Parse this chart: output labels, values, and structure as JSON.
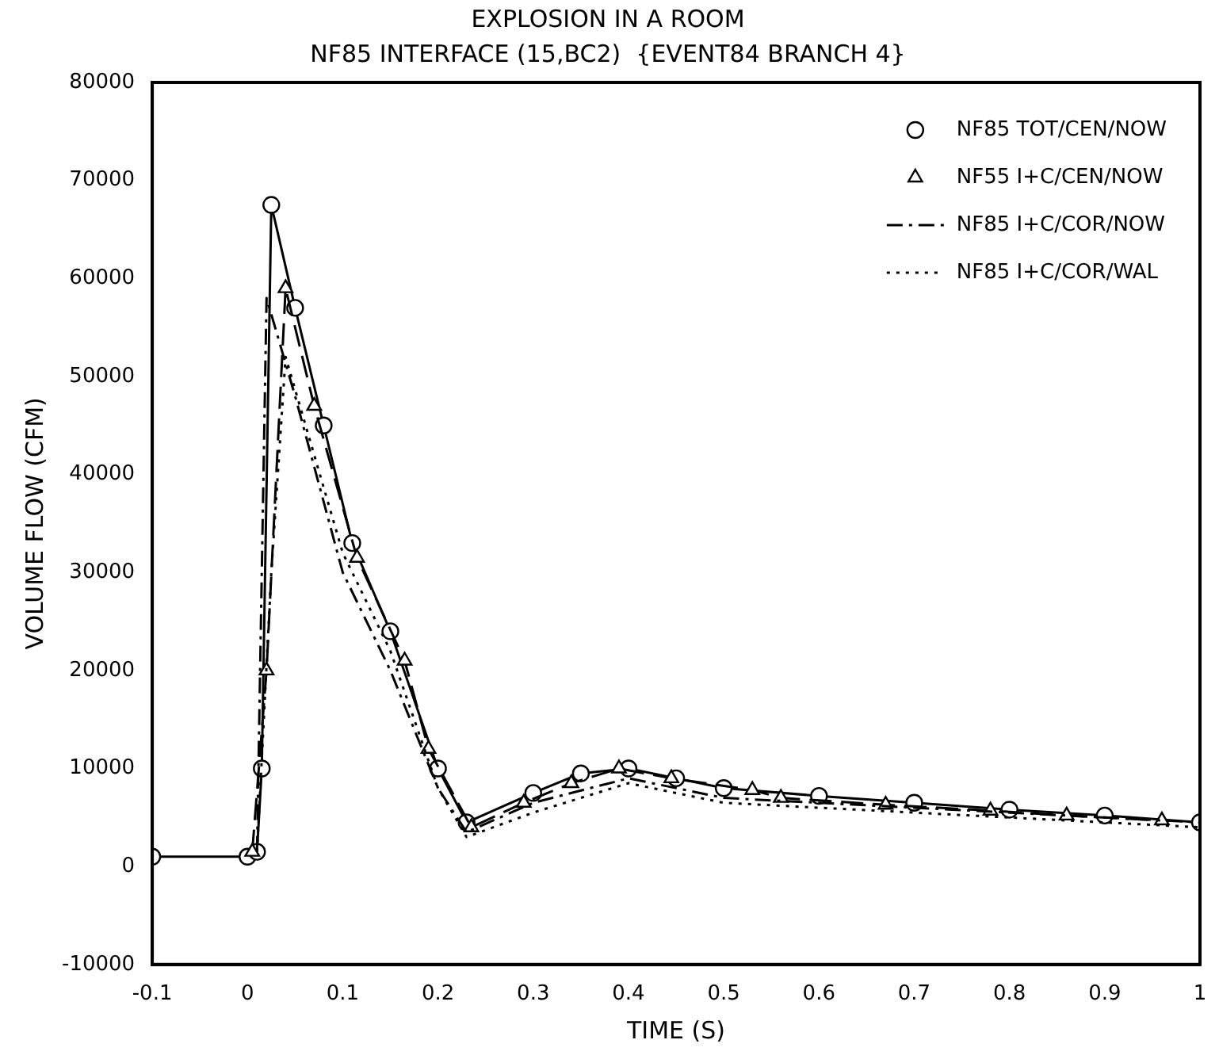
{
  "chart_data": {
    "type": "line",
    "title": "EXPLOSION IN A ROOM",
    "subtitle": "NF85 INTERFACE (15,BC2)  {EVENT84 BRANCH 4}",
    "xlabel": "TIME (S)",
    "ylabel": "VOLUME FLOW (CFM)",
    "xlim": [
      -0.1,
      1.0
    ],
    "xticks": [
      -0.1,
      0.0,
      0.1,
      0.2,
      0.3,
      0.4,
      0.5,
      0.6,
      0.7,
      0.8,
      0.9,
      1.0
    ],
    "ylim": [
      -10000,
      80000
    ],
    "yticks": [
      -10000,
      0,
      10000,
      20000,
      30000,
      40000,
      50000,
      60000,
      70000,
      80000
    ],
    "grid": false,
    "legend": "top right",
    "series": [
      {
        "name": "NF85 TOT/CEN/NOW",
        "color": "#000000",
        "line_style": "solid",
        "marker": "circle",
        "x": [
          -0.1,
          0.0,
          0.01,
          0.015,
          0.025,
          0.05,
          0.08,
          0.11,
          0.15,
          0.2,
          0.23,
          0.3,
          0.35,
          0.4,
          0.45,
          0.5,
          0.6,
          0.7,
          0.8,
          0.9,
          1.0
        ],
        "values": [
          1000,
          1000,
          1500,
          10000,
          67500,
          57000,
          45000,
          33000,
          24000,
          10000,
          4500,
          7500,
          9500,
          10000,
          9000,
          8000,
          7200,
          6500,
          5800,
          5200,
          4500
        ]
      },
      {
        "name": "NF55 I+C/CEN/NOW",
        "color": "#000000",
        "line_style": "dashed",
        "marker": "triangle",
        "x": [
          0.005,
          0.02,
          0.04,
          0.07,
          0.115,
          0.165,
          0.19,
          0.235,
          0.29,
          0.34,
          0.39,
          0.445,
          0.53,
          0.56,
          0.67,
          0.78,
          0.86,
          0.96
        ],
        "values": [
          1500,
          20000,
          59000,
          47000,
          31500,
          21000,
          12000,
          4000,
          6500,
          8500,
          10000,
          9000,
          7800,
          7000,
          6300,
          5700,
          5200,
          4700
        ]
      },
      {
        "name": "NF85 I+C/COR/NOW",
        "color": "#000000",
        "line_style": "dashdot",
        "marker": "none",
        "x": [
          0.01,
          0.015,
          0.02,
          0.05,
          0.1,
          0.15,
          0.2,
          0.23,
          0.3,
          0.4,
          0.5,
          0.6,
          0.7,
          0.8,
          0.9,
          1.0
        ],
        "values": [
          1500,
          30000,
          58000,
          48000,
          30000,
          20000,
          8000,
          3500,
          6500,
          9000,
          7000,
          6500,
          6000,
          5500,
          5000,
          4500
        ]
      },
      {
        "name": "NF85 I+C/COR/WAL",
        "color": "#000000",
        "line_style": "dotted",
        "marker": "none",
        "x": [
          0.01,
          0.025,
          0.04,
          0.07,
          0.1,
          0.15,
          0.2,
          0.23,
          0.3,
          0.4,
          0.5,
          0.6,
          0.7,
          0.8,
          0.9,
          1.0
        ],
        "values": [
          1500,
          30000,
          52000,
          42000,
          32000,
          22000,
          8000,
          3000,
          5500,
          8500,
          6500,
          6000,
          5500,
          5000,
          4500,
          4000
        ]
      }
    ]
  }
}
